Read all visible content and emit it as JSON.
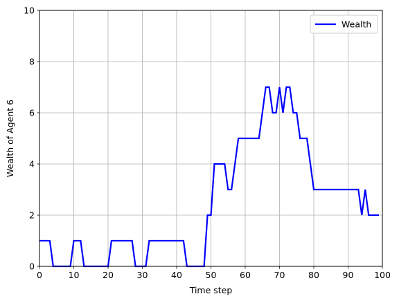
{
  "chart_data": {
    "type": "line",
    "xlabel": "Time step",
    "ylabel": "Wealth of Agent 6",
    "xlim": [
      0,
      100
    ],
    "ylim": [
      0,
      10
    ],
    "xticks": [
      0,
      10,
      20,
      30,
      40,
      50,
      60,
      70,
      80,
      90,
      100
    ],
    "yticks": [
      0,
      2,
      4,
      6,
      8,
      10
    ],
    "grid": true,
    "legend_position": "top-right",
    "series": [
      {
        "name": "Wealth",
        "color": "#0000ff",
        "x": [
          0,
          1,
          2,
          3,
          4,
          5,
          6,
          7,
          8,
          9,
          10,
          11,
          12,
          13,
          14,
          15,
          16,
          17,
          18,
          19,
          20,
          21,
          22,
          23,
          24,
          25,
          26,
          27,
          28,
          29,
          30,
          31,
          32,
          33,
          34,
          35,
          36,
          37,
          38,
          39,
          40,
          41,
          42,
          43,
          44,
          45,
          46,
          47,
          48,
          49,
          50,
          51,
          52,
          53,
          54,
          55,
          56,
          57,
          58,
          59,
          60,
          61,
          62,
          63,
          64,
          65,
          66,
          67,
          68,
          69,
          70,
          71,
          72,
          73,
          74,
          75,
          76,
          77,
          78,
          79,
          80,
          81,
          82,
          83,
          84,
          85,
          86,
          87,
          88,
          89,
          90,
          91,
          92,
          93,
          94,
          95,
          96,
          97,
          98,
          99
        ],
        "y": [
          1,
          1,
          1,
          1,
          0,
          0,
          0,
          0,
          0,
          0,
          1,
          1,
          1,
          0,
          0,
          0,
          0,
          0,
          0,
          0,
          0,
          1,
          1,
          1,
          1,
          1,
          1,
          1,
          0,
          0,
          0,
          0,
          1,
          1,
          1,
          1,
          1,
          1,
          1,
          1,
          1,
          1,
          1,
          0,
          0,
          0,
          0,
          0,
          0,
          2,
          2,
          4,
          4,
          4,
          4,
          3,
          3,
          4,
          5,
          5,
          5,
          5,
          5,
          5,
          5,
          6,
          7,
          7,
          6,
          6,
          7,
          6,
          7,
          7,
          6,
          6,
          5,
          5,
          5,
          4,
          3,
          3,
          3,
          3,
          3,
          3,
          3,
          3,
          3,
          3,
          3,
          3,
          3,
          3,
          2,
          3,
          2,
          2,
          2,
          2
        ]
      }
    ]
  }
}
